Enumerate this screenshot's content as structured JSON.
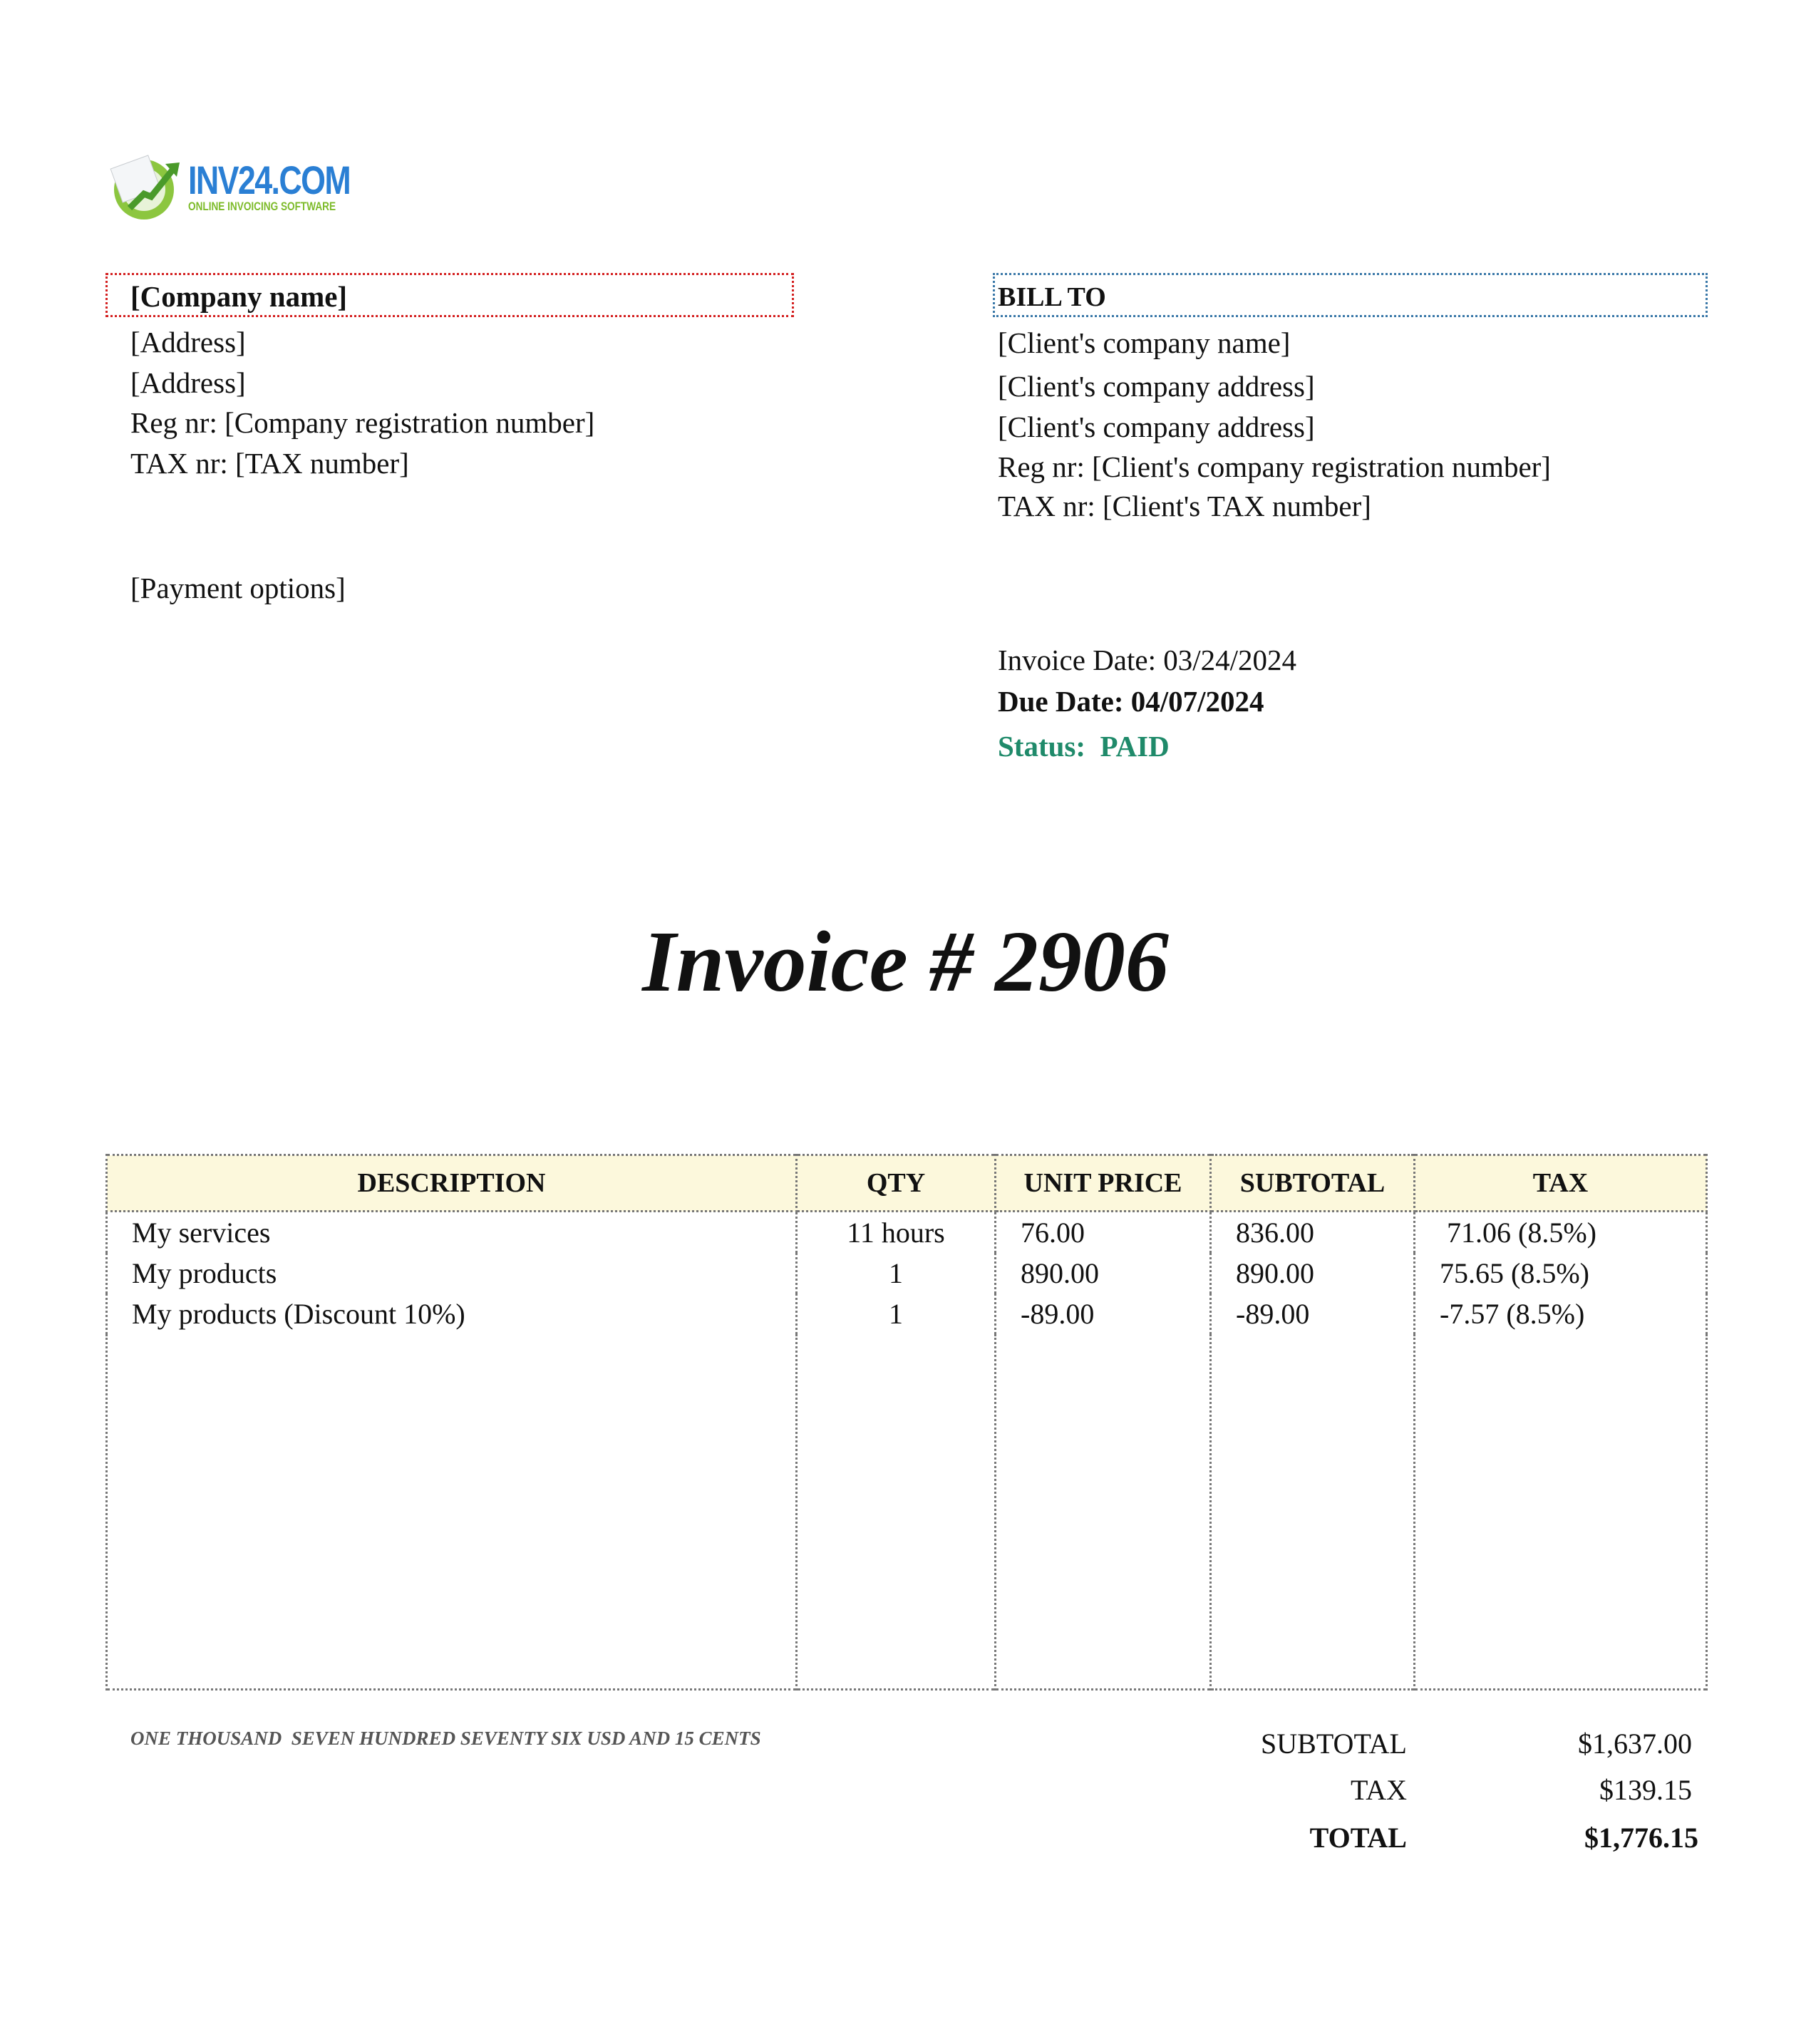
{
  "logo": {
    "name": "INV24.COM",
    "tagline": "ONLINE INVOICING SOFTWARE",
    "colors": {
      "blue": "#2a7fd4",
      "green": "#7dbb2a"
    }
  },
  "seller": {
    "company_name": "[Company name]",
    "lines": [
      "[Address]",
      "[Address]",
      "Reg nr: [Company registration number]",
      "TAX nr: [TAX number]"
    ],
    "payment_options": "[Payment options]"
  },
  "bill_to": {
    "heading": "BILL TO",
    "lines": [
      "[Client's company name]",
      "[Client's company address]",
      "[Client's company address]",
      "Reg nr: [Client's company registration number]",
      "TAX nr: [Client's TAX number]"
    ]
  },
  "dates": {
    "invoice_date": "Invoice Date: 03/24/2024",
    "due_date": "Due Date: 04/07/2024",
    "status_label": "Status:",
    "status_value": "PAID",
    "status_color": "#1f8a6a"
  },
  "title": "Invoice # 2906",
  "table": {
    "headers": [
      "DESCRIPTION",
      "QTY",
      "UNIT PRICE",
      "SUBTOTAL",
      "TAX"
    ],
    "rows": [
      [
        "My services",
        "11 hours",
        "76.00",
        "836.00",
        " 71.06 (8.5%)"
      ],
      [
        "My products",
        "1",
        "890.00",
        "890.00",
        "75.65 (8.5%)"
      ],
      [
        "My products (Discount 10%)",
        "1",
        "-89.00",
        "-89.00",
        "-7.57 (8.5%)"
      ]
    ]
  },
  "amount_in_words": "ONE THOUSAND  SEVEN HUNDRED SEVENTY SIX USD AND 15 CENTS",
  "totals": {
    "subtotal_label": "SUBTOTAL",
    "subtotal": "$1,637.00",
    "tax_label": "TAX",
    "tax": "$139.15",
    "total_label": "TOTAL",
    "total": "$1,776.15"
  }
}
